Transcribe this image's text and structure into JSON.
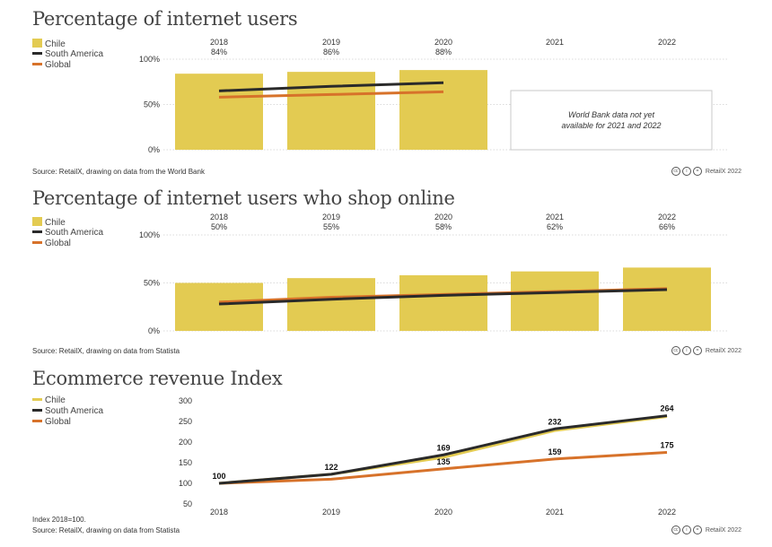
{
  "legend": {
    "chile": "Chile",
    "south_america": "South America",
    "global": "Global"
  },
  "colors": {
    "chile": "#e3cb52",
    "south_america": "#2a2a2a",
    "global": "#d7722a",
    "grid": "#b8b8b8"
  },
  "credit": "RetailX 2022",
  "chart_data": [
    {
      "type": "bar",
      "title": "Percentage of internet users",
      "categories": [
        "2018",
        "2019",
        "2020",
        "2021",
        "2022"
      ],
      "yticks": [
        "100%",
        "50%",
        "0%"
      ],
      "ylim": [
        0,
        100
      ],
      "series": [
        {
          "name": "Chile",
          "values": [
            84,
            86,
            88,
            null,
            null
          ],
          "labels": [
            "84%",
            "86%",
            "88%",
            "",
            ""
          ]
        },
        {
          "name": "South America",
          "values": [
            65,
            70,
            74,
            null,
            null
          ]
        },
        {
          "name": "Global",
          "values": [
            58,
            61,
            64,
            null,
            null
          ]
        }
      ],
      "note": "World Bank data not yet available for 2021 and 2022",
      "source": "Source: RetailX, drawing on data from the World Bank"
    },
    {
      "type": "bar",
      "title": "Percentage of internet users who shop online",
      "categories": [
        "2018",
        "2019",
        "2020",
        "2021",
        "2022"
      ],
      "yticks": [
        "100%",
        "50%",
        "0%"
      ],
      "ylim": [
        0,
        100
      ],
      "series": [
        {
          "name": "Chile",
          "values": [
            50,
            55,
            58,
            62,
            66
          ],
          "labels": [
            "50%",
            "55%",
            "58%",
            "62%",
            "66%"
          ]
        },
        {
          "name": "South America",
          "values": [
            28,
            33,
            37,
            40,
            43
          ]
        },
        {
          "name": "Global",
          "values": [
            30,
            35,
            38,
            41,
            44
          ]
        }
      ],
      "source": "Source: RetailX, drawing on data from Statista"
    },
    {
      "type": "line",
      "title": "Ecommerce revenue Index",
      "categories": [
        "2018",
        "2019",
        "2020",
        "2021",
        "2022"
      ],
      "yticks": [
        300,
        250,
        200,
        150,
        100,
        50
      ],
      "ylim": [
        50,
        300
      ],
      "series": [
        {
          "name": "Chile",
          "values": [
            100,
            122,
            163,
            228,
            262
          ]
        },
        {
          "name": "South America",
          "values": [
            100,
            122,
            169,
            232,
            264
          ]
        },
        {
          "name": "Global",
          "values": [
            100,
            110,
            135,
            159,
            175
          ]
        }
      ],
      "annotations": [
        {
          "series": "South America",
          "index": 0,
          "text": "100"
        },
        {
          "series": "South America",
          "index": 1,
          "text": "122"
        },
        {
          "series": "South America",
          "index": 2,
          "text": "169"
        },
        {
          "series": "South America",
          "index": 3,
          "text": "232"
        },
        {
          "series": "South America",
          "index": 4,
          "text": "264"
        },
        {
          "series": "Global",
          "index": 2,
          "text": "135"
        },
        {
          "series": "Global",
          "index": 3,
          "text": "159"
        },
        {
          "series": "Global",
          "index": 4,
          "text": "175"
        }
      ],
      "note": "Index 2018=100.",
      "source": "Source: RetailX, drawing on data from Statista"
    }
  ]
}
